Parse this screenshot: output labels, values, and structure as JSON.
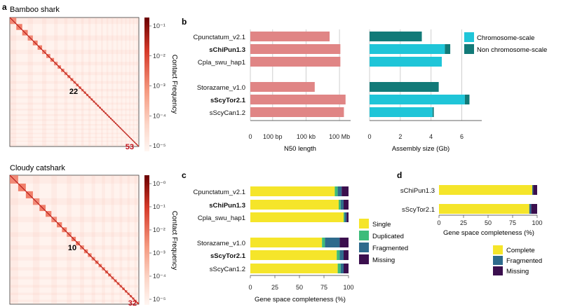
{
  "panel_letters": {
    "a": "a",
    "b": "b",
    "c": "c",
    "d": "d"
  },
  "heatmaps": [
    {
      "title": "Bamboo shark",
      "center_label": "22",
      "corner_label": "53",
      "colorbar_label": "Contact Frequency",
      "colorbar_ticks": [
        "10⁻¹",
        "10⁻²",
        "10⁻³",
        "10⁻⁴",
        "10⁻⁵"
      ],
      "n_blocks": 53
    },
    {
      "title": "Cloudy catshark",
      "center_label": "10",
      "corner_label": "32",
      "colorbar_label": "Contact Frequency",
      "colorbar_ticks": [
        "10⁻⁰",
        "10⁻¹",
        "10⁻²",
        "10⁻³",
        "10⁻⁴",
        "10⁻⁵"
      ],
      "n_blocks": 32
    }
  ],
  "colors": {
    "n50_bar": "#e08585",
    "chromosome_scale": "#1fc5d8",
    "non_chromosome_scale": "#127a78",
    "single": "#f5e52a",
    "duplicated": "#3dbc7a",
    "fragmented": "#2e6a8c",
    "missing": "#3b0f4e",
    "complete": "#f5e52a",
    "heat_low": "#fff3ee",
    "heat_high": "#8b0000",
    "bold_label": "#111111"
  },
  "chart_data": [
    {
      "type": "bar",
      "panel": "b",
      "chart": "n50",
      "log_scale": true,
      "categories": [
        "Cpunctatum_v2.1",
        "sChiPun1.3",
        "Cpla_swu_hap1",
        "Storazame_v1.0",
        "sScyTor2.1",
        "sScyCan1.2"
      ],
      "bold": [
        false,
        true,
        false,
        false,
        true,
        false
      ],
      "values": [
        13000000,
        120000000,
        120000000,
        600000,
        350000000,
        250000000
      ],
      "xlim": [
        1,
        1000000000
      ],
      "xticks": [
        "0",
        "100 bp",
        "100 kb",
        "100 Mb"
      ],
      "xtick_values": [
        1,
        100,
        100000,
        100000000
      ],
      "xlabel": "N50 length",
      "grid": true
    },
    {
      "type": "bar",
      "panel": "b",
      "chart": "assembly_size",
      "categories": [
        "Cpunctatum_v2.1",
        "sChiPun1.3",
        "Cpla_swu_hap1",
        "Storazame_v1.0",
        "sScyTor2.1",
        "sScyCan1.2"
      ],
      "series": [
        {
          "name": "Chromosome-scale",
          "values": [
            0,
            4.9,
            4.7,
            0,
            6.2,
            4.1
          ]
        },
        {
          "name": "Non chromosome-scale",
          "values": [
            3.4,
            0.35,
            0,
            4.5,
            0.3,
            0.08
          ]
        }
      ],
      "xlim": [
        0,
        7.3
      ],
      "xticks": [
        0,
        2,
        4,
        6
      ],
      "xlabel": "Assembly size (Gb)",
      "legend_position": "right",
      "grid": true
    },
    {
      "type": "bar",
      "panel": "c",
      "chart": "busco",
      "stacked": true,
      "categories": [
        "Cpunctatum_v2.1",
        "sChiPun1.3",
        "Cpla_swu_hap1",
        "Storazame_v1.0",
        "sScyTor2.1",
        "sScyCan1.2"
      ],
      "bold": [
        false,
        true,
        false,
        false,
        true,
        false
      ],
      "series": [
        {
          "name": "Single",
          "values": [
            86,
            90,
            95,
            73,
            88,
            89
          ]
        },
        {
          "name": "Duplicated",
          "values": [
            3,
            2,
            1,
            3,
            3,
            3
          ]
        },
        {
          "name": "Fragmented",
          "values": [
            4,
            3,
            2,
            15,
            4,
            3
          ]
        },
        {
          "name": "Missing",
          "values": [
            7,
            5,
            2,
            9,
            5,
            5
          ]
        }
      ],
      "xlim": [
        0,
        100
      ],
      "xticks": [
        0,
        25,
        50,
        75,
        100
      ],
      "xlabel": "Gene space completeness (%)",
      "legend_position": "right"
    },
    {
      "type": "bar",
      "panel": "d",
      "chart": "gene_space",
      "stacked": true,
      "categories": [
        "sChiPun1.3",
        "sScyTor2.1"
      ],
      "series": [
        {
          "name": "Complete",
          "values": [
            95,
            92
          ]
        },
        {
          "name": "Fragmented",
          "values": [
            1,
            2
          ]
        },
        {
          "name": "Missing",
          "values": [
            4,
            6
          ]
        }
      ],
      "xlim": [
        0,
        100
      ],
      "xticks": [
        0,
        25,
        50,
        75,
        100
      ],
      "xlabel": "Gene space completeness (%)",
      "legend_position": "bottom"
    }
  ]
}
